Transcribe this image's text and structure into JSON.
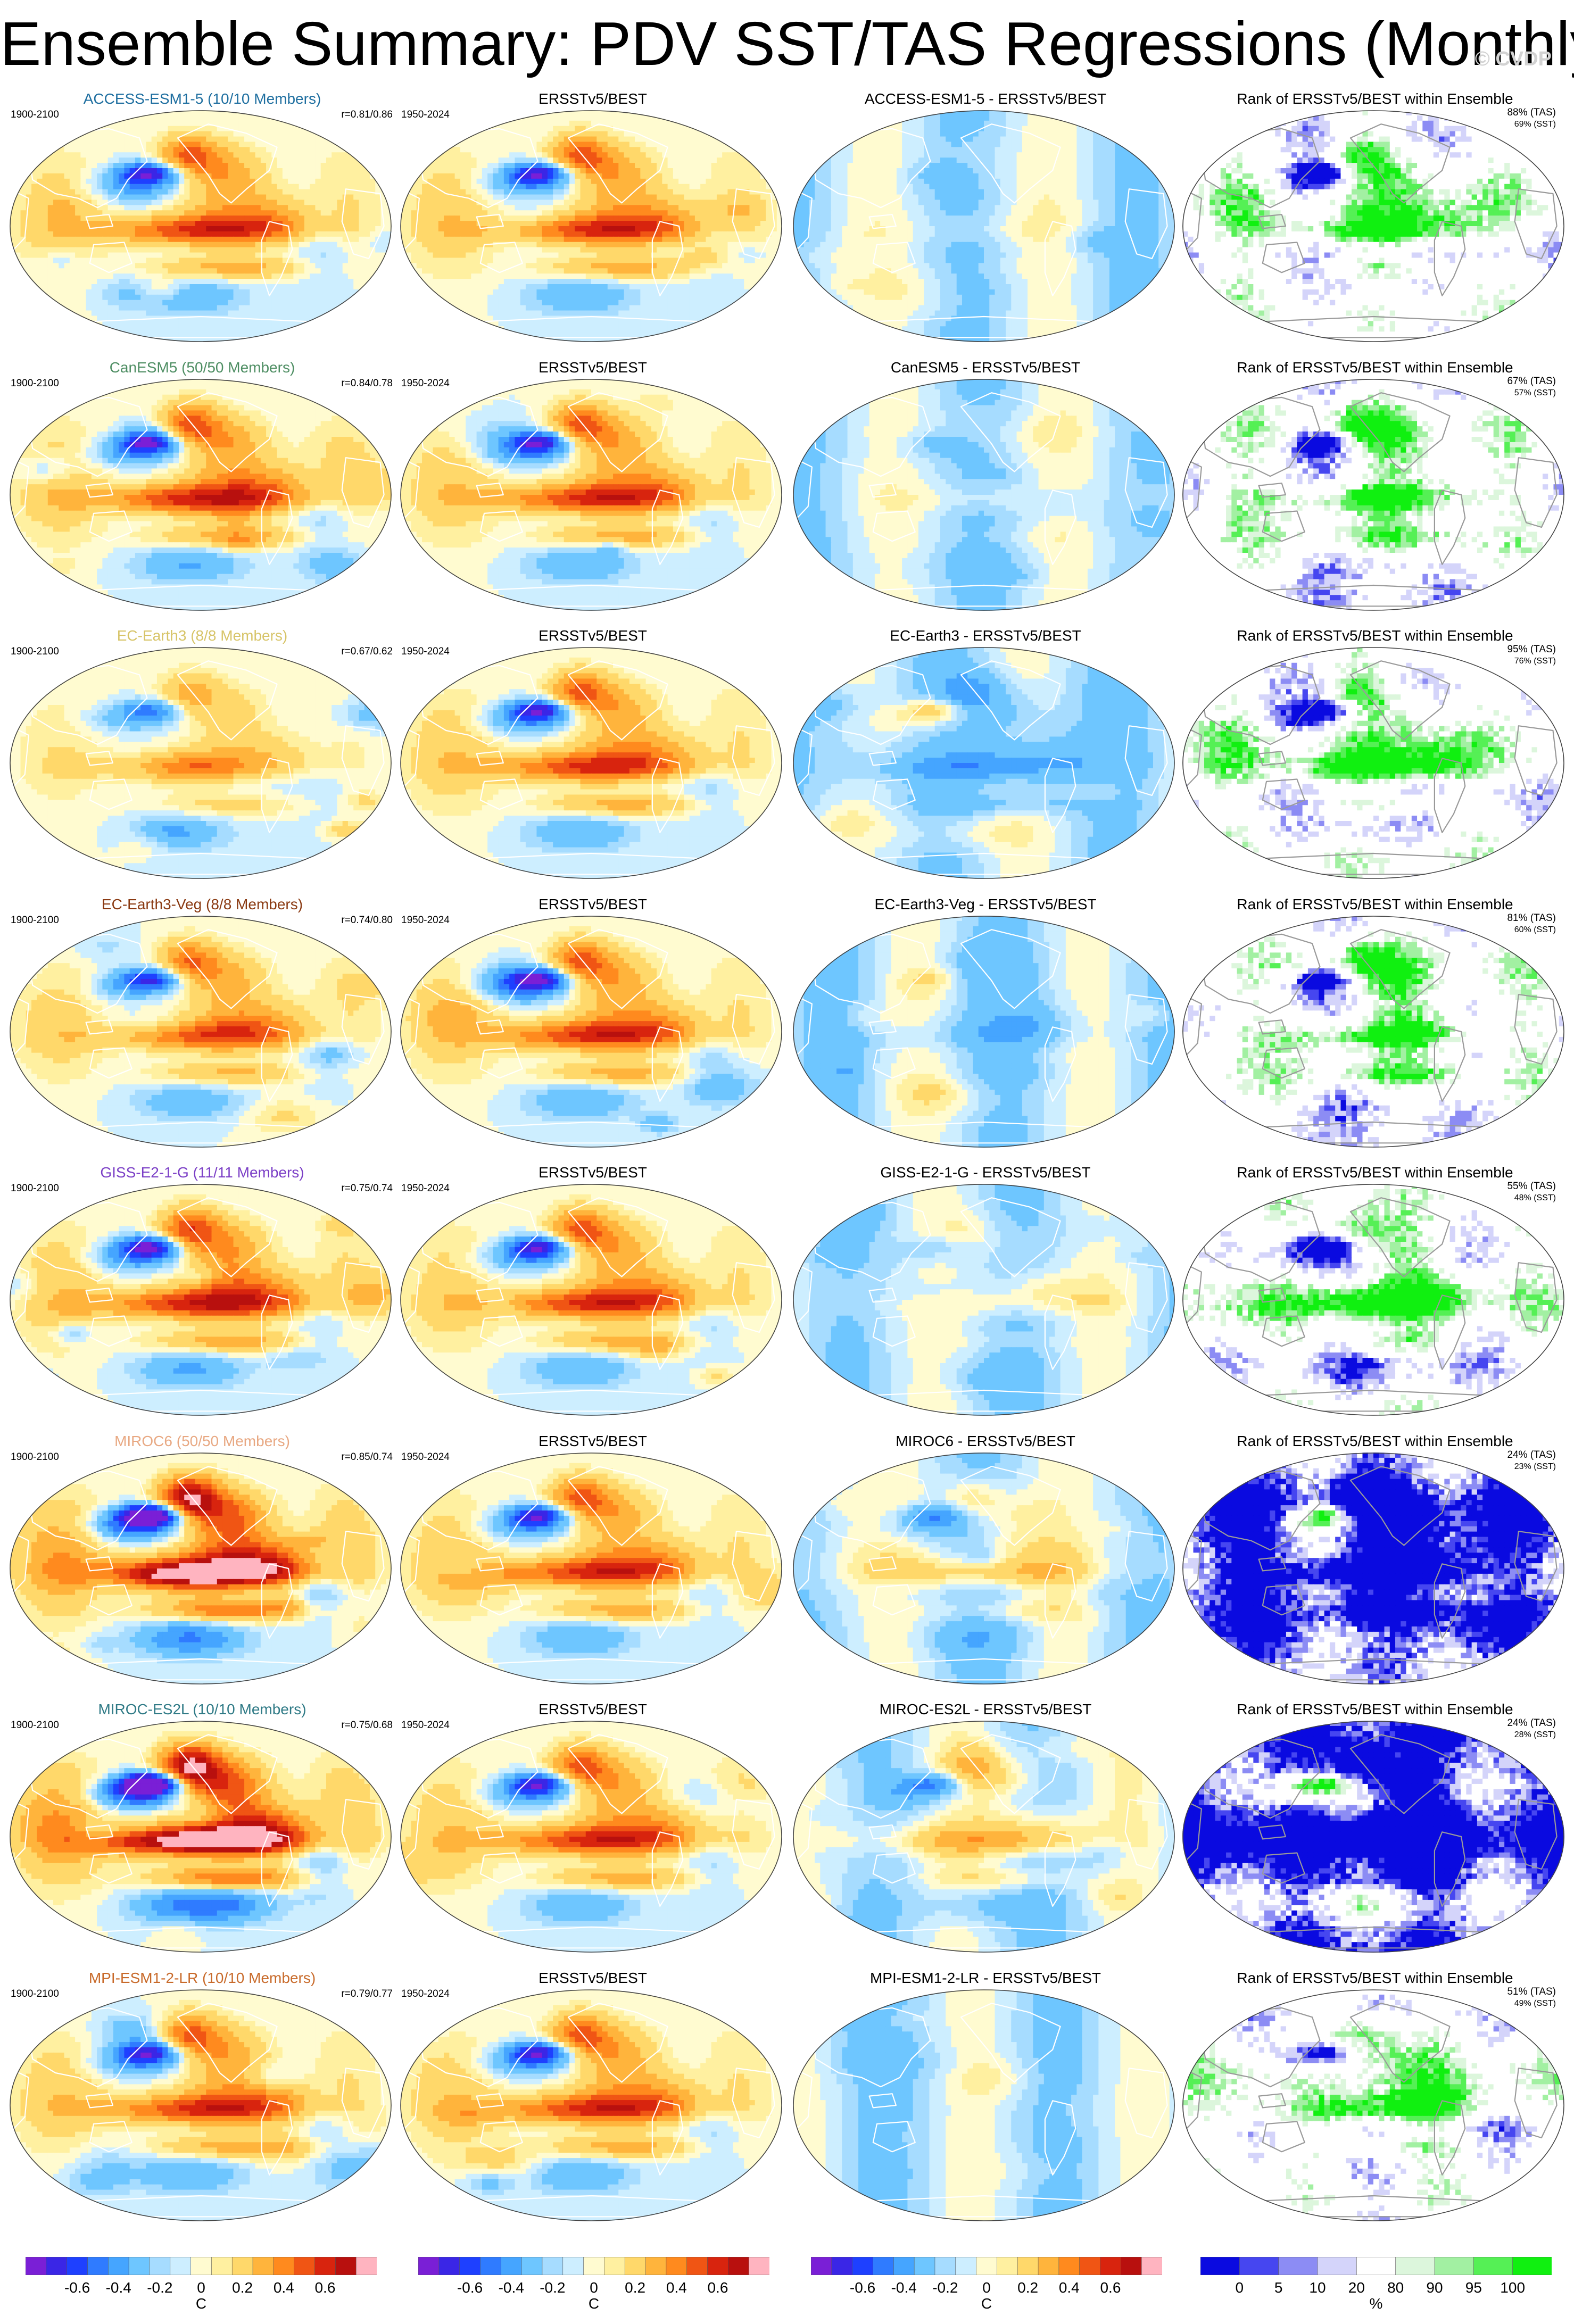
{
  "title": "Ensemble Summary: PDV SST/TAS Regressions (Monthly)",
  "watermark": "© CVDP",
  "obs_label": "ERSSTv5/BEST",
  "obs_period": "1950-2024",
  "model_period": "1900-2100",
  "rank_label": "Rank of ERSSTv5/BEST within Ensemble",
  "rows": [
    {
      "model": "ACCESS-ESM1-5",
      "model_title": "ACCESS-ESM1-5 (10/10 Members)",
      "title_color": "#1f6fa0",
      "r": "r=0.81/0.86",
      "diff_title": "ACCESS-ESM1-5 - ERSSTv5/BEST",
      "pct_tas": "88% (TAS)",
      "pct_sst": "69% (SST)",
      "amp": 1.0,
      "seed": 11,
      "obs_seed": 3
    },
    {
      "model": "CanESM5",
      "model_title": "CanESM5 (50/50 Members)",
      "title_color": "#4e8e63",
      "r": "r=0.84/0.78",
      "diff_title": "CanESM5 - ERSSTv5/BEST",
      "pct_tas": "67% (TAS)",
      "pct_sst": "57% (SST)",
      "amp": 1.05,
      "seed": 23,
      "obs_seed": 3
    },
    {
      "model": "EC-Earth3",
      "model_title": "EC-Earth3 (8/8 Members)",
      "title_color": "#d7c468",
      "r": "r=0.67/0.62",
      "diff_title": "EC-Earth3 - ERSSTv5/BEST",
      "pct_tas": "95% (TAS)",
      "pct_sst": "76% (SST)",
      "amp": 0.55,
      "seed": 37,
      "obs_seed": 3
    },
    {
      "model": "EC-Earth3-Veg",
      "model_title": "EC-Earth3-Veg (8/8 Members)",
      "title_color": "#8a3a12",
      "r": "r=0.74/0.80",
      "diff_title": "EC-Earth3-Veg - ERSSTv5/BEST",
      "pct_tas": "81% (TAS)",
      "pct_sst": "60% (SST)",
      "amp": 0.9,
      "seed": 41,
      "obs_seed": 3
    },
    {
      "model": "GISS-E2-1-G",
      "model_title": "GISS-E2-1-G (11/11 Members)",
      "title_color": "#7b3fc6",
      "r": "r=0.75/0.74",
      "diff_title": "GISS-E2-1-G - ERSSTv5/BEST",
      "pct_tas": "55% (TAS)",
      "pct_sst": "48% (SST)",
      "amp": 1.1,
      "seed": 53,
      "obs_seed": 3
    },
    {
      "model": "MIROC6",
      "model_title": "MIROC6 (50/50 Members)",
      "title_color": "#e8a882",
      "r": "r=0.85/0.74",
      "diff_title": "MIROC6 - ERSSTv5/BEST",
      "pct_tas": "24% (TAS)",
      "pct_sst": "23% (SST)",
      "amp": 1.6,
      "seed": 67,
      "obs_seed": 3
    },
    {
      "model": "MIROC-ES2L",
      "model_title": "MIROC-ES2L (10/10 Members)",
      "title_color": "#2f7a86",
      "r": "r=0.75/0.68",
      "diff_title": "MIROC-ES2L - ERSSTv5/BEST",
      "pct_tas": "24% (TAS)",
      "pct_sst": "28% (SST)",
      "amp": 1.7,
      "seed": 71,
      "obs_seed": 3
    },
    {
      "model": "MPI-ESM1-2-LR",
      "model_title": "MPI-ESM1-2-LR (10/10 Members)",
      "title_color": "#c86a2a",
      "r": "r=0.79/0.77",
      "diff_title": "MPI-ESM1-2-LR - ERSSTv5/BEST",
      "pct_tas": "51% (TAS)",
      "pct_sst": "49% (SST)",
      "amp": 1.0,
      "seed": 83,
      "obs_seed": 3
    }
  ],
  "colorbars": {
    "temperature": {
      "unit": "C",
      "labels": [
        "-0.6",
        "-0.4",
        "-0.2",
        "0",
        "0.2",
        "0.4",
        "0.6"
      ],
      "colors": [
        "#7a1fd6",
        "#3a26e6",
        "#1e40ff",
        "#2f7bff",
        "#45a5ff",
        "#6ec6ff",
        "#a6dcff",
        "#cdeeff",
        "#fffbd0",
        "#fff0a0",
        "#ffd86a",
        "#ffb43c",
        "#ff8a1e",
        "#f05514",
        "#d8240e",
        "#b8100e",
        "#ffb4c0"
      ]
    },
    "rank": {
      "unit": "%",
      "labels": [
        "0",
        "5",
        "10",
        "20",
        "80",
        "90",
        "95",
        "100"
      ],
      "colors": [
        "#0a0ae0",
        "#4646f0",
        "#8c8cf4",
        "#d4d4fa",
        "#ffffff",
        "#dcf6dc",
        "#a2f0a2",
        "#55f055",
        "#10f010"
      ]
    }
  }
}
